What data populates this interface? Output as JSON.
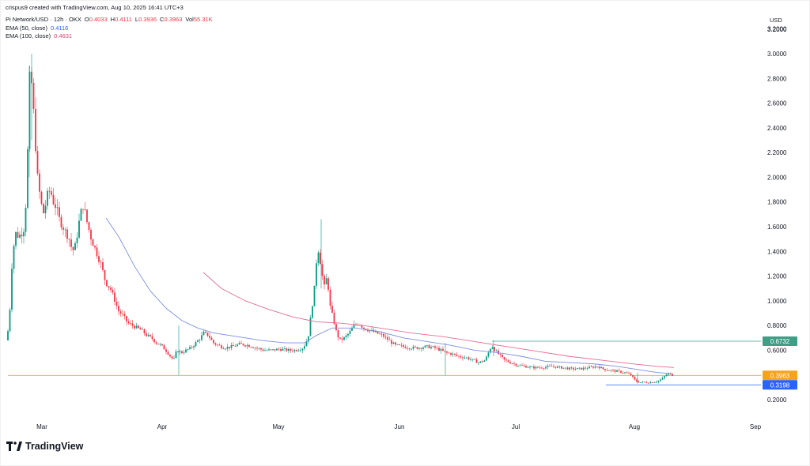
{
  "header": {
    "text": "crispus9 created with TradingView.com, Aug 10, 2025 16:41 UTC+3"
  },
  "legend": {
    "symbol": "Pi Network/USD · 12h · OKX",
    "o_label": "O",
    "o_value": "0.4033",
    "h_label": "H",
    "h_value": "0.4111",
    "l_label": "L",
    "l_value": "0.3936",
    "c_label": "C",
    "c_value": "0.3963",
    "vol_label": "Vol",
    "vol_value": "55.31K",
    "ema50_label": "EMA (50, close)",
    "ema50_value": "0.4116",
    "ema100_label": "EMA (100, close)",
    "ema100_value": "0.4631"
  },
  "currency": "USD",
  "logo_text": "TradingView",
  "chart_data": {
    "type": "candlestick",
    "x_tick_labels": [
      "Mar",
      "Apr",
      "May",
      "Jun",
      "Jul",
      "Aug",
      "Sep"
    ],
    "y_tick_labels": [
      "3.2000",
      "3.0000",
      "2.8000",
      "2.6000",
      "2.4000",
      "2.2000",
      "2.0000",
      "1.8000",
      "1.6000",
      "1.4000",
      "1.2000",
      "1.0000",
      "0.8000",
      "0.6000",
      "0.2000"
    ],
    "y_tick_values": [
      3.2,
      3.0,
      2.8,
      2.6,
      2.4,
      2.2,
      2.0,
      1.8,
      1.6,
      1.4,
      1.2,
      1.0,
      0.8,
      0.6,
      0.2
    ],
    "ylim": [
      0.2,
      3.2
    ],
    "price_labels": [
      {
        "text": "0.6732",
        "value": 0.6732,
        "color": "#3e9f86"
      },
      {
        "text": "0.3963",
        "value": 0.3963,
        "color": "#f7a21b"
      },
      {
        "text": "0.3198",
        "value": 0.3198,
        "color": "#2962ff"
      }
    ],
    "series": [
      {
        "name": "EMA (50, close)",
        "color": "#7b8fe0"
      },
      {
        "name": "EMA (100, close)",
        "color": "#e56b93"
      }
    ],
    "colors": {
      "up": "#089981",
      "down": "#f23645"
    }
  }
}
